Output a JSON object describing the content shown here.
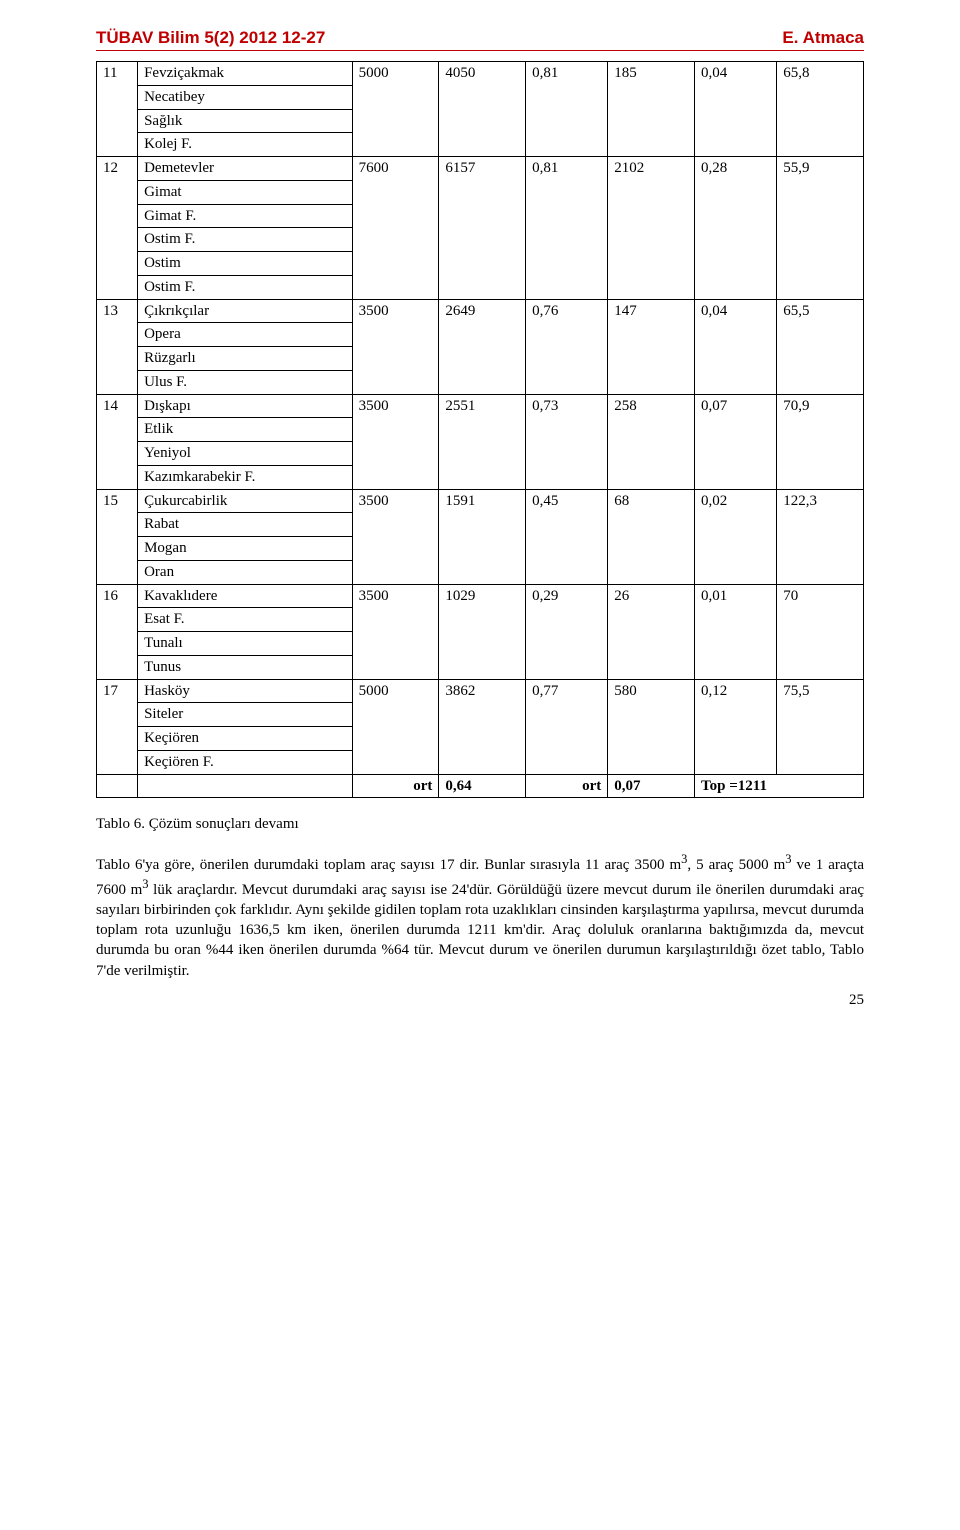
{
  "header": {
    "journal": "TÜBAV Bilim ",
    "volume_bold": "5",
    "issue_pages": "(2) 2012 12-27",
    "author": "E. Atmaca"
  },
  "table": {
    "rows": [
      {
        "idx": "11",
        "names": [
          "Fevziçakmak",
          "Necatibey",
          "Sağlık",
          "Kolej F."
        ],
        "vals": [
          "5000",
          "4050",
          "0,81",
          "185",
          "0,04",
          "65,8"
        ]
      },
      {
        "idx": "12",
        "names": [
          "Demetevler",
          "Gimat",
          "Gimat F.",
          "Ostim F.",
          "Ostim",
          "Ostim F."
        ],
        "vals": [
          "7600",
          "6157",
          "0,81",
          "2102",
          "0,28",
          "55,9"
        ]
      },
      {
        "idx": "13",
        "names": [
          "Çıkrıkçılar",
          "Opera",
          "Rüzgarlı",
          "Ulus F."
        ],
        "vals": [
          "3500",
          "2649",
          "0,76",
          "147",
          "0,04",
          "65,5"
        ]
      },
      {
        "idx": "14",
        "names": [
          "Dışkapı",
          "Etlik",
          "Yeniyol",
          "Kazımkarabekir F."
        ],
        "vals": [
          "3500",
          "2551",
          "0,73",
          "258",
          "0,07",
          "70,9"
        ]
      },
      {
        "idx": "15",
        "names": [
          "Çukurcabirlik",
          "Rabat",
          "Mogan",
          "Oran"
        ],
        "vals": [
          "3500",
          "1591",
          "0,45",
          "68",
          "0,02",
          "122,3"
        ]
      },
      {
        "idx": "16",
        "names": [
          "Kavaklıdere",
          "Esat F.",
          "Tunalı",
          "Tunus"
        ],
        "vals": [
          "3500",
          "1029",
          "0,29",
          "26",
          "0,01",
          "70"
        ]
      },
      {
        "idx": "17",
        "names": [
          "Hasköy",
          "Siteler",
          "Keçiören",
          "Keçiören F."
        ],
        "vals": [
          "5000",
          "3862",
          "0,77",
          "580",
          "0,12",
          "75,5"
        ]
      }
    ],
    "footer": {
      "c1": "",
      "c2": "",
      "c3": "ort",
      "c4": "0,64",
      "c5": "ort",
      "c6": "0,07",
      "c7": "Top =1211"
    }
  },
  "caption": "Tablo 6. Çözüm sonuçları devamı",
  "paragraph_parts": {
    "p1": "Tablo 6'ya göre, önerilen durumdaki toplam araç sayısı 17 dir. Bunlar sırasıyla 11 araç 3500 m",
    "sup1": "3",
    "p2": ", 5 araç 5000 m",
    "sup2": "3",
    "p3": " ve 1 araçta 7600 m",
    "sup3": "3",
    "p4": " lük araçlardır. Mevcut durumdaki araç sayısı ise 24'dür. Görüldüğü üzere mevcut durum ile önerilen durumdaki araç sayıları birbirinden çok farklıdır. Aynı şekilde gidilen toplam rota uzaklıkları cinsinden karşılaştırma yapılırsa, mevcut durumda toplam rota uzunluğu 1636,5 km iken, önerilen durumda 1211 km'dir. Araç doluluk oranlarına baktığımızda da, mevcut durumda bu oran %44 iken önerilen durumda %64 tür. Mevcut durum ve önerilen durumun karşılaştırıldığı özet tablo, Tablo 7'de verilmiştir."
  },
  "page_number": "25"
}
